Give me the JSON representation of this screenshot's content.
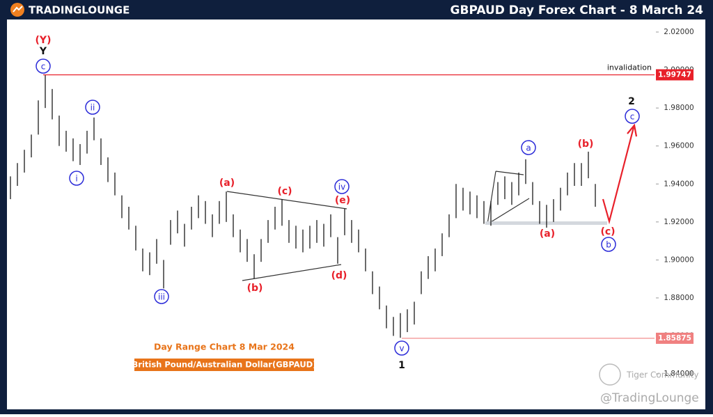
{
  "chart_data": {
    "type": "ohlc",
    "title": "GBPAUD Day Forex Chart - 8 March 24",
    "brand": "TRADINGLOUNGE",
    "caption": "Day Range Chart 8 Mar 2024",
    "subcaption": "British Pound/Australian Dollar(GBPAUD)",
    "watermark": [
      "Tiger Community",
      "@TradingLounge"
    ],
    "color": "#1a1a1a",
    "high": [
      1.944,
      1.951,
      1.958,
      1.966,
      1.984,
      1.9975,
      1.99,
      1.976,
      1.968,
      1.964,
      1.961,
      1.968,
      1.975,
      1.964,
      1.954,
      1.946,
      1.934,
      1.928,
      1.918,
      1.906,
      1.904,
      1.911,
      1.9,
      1.921,
      1.926,
      1.919,
      1.928,
      1.934,
      1.931,
      1.924,
      1.931,
      1.936,
      1.924,
      1.916,
      1.911,
      1.903,
      1.911,
      1.921,
      1.928,
      1.932,
      1.921,
      1.918,
      1.916,
      1.918,
      1.921,
      1.919,
      1.924,
      1.912,
      1.927,
      1.921,
      1.916,
      1.906,
      1.894,
      1.886,
      1.876,
      1.87,
      1.872,
      1.874,
      1.878,
      1.894,
      1.902,
      1.906,
      1.914,
      1.924,
      1.94,
      1.938,
      1.936,
      1.934,
      1.931,
      1.931,
      1.941,
      1.944,
      1.941,
      1.946,
      1.953,
      1.941,
      1.931,
      1.929,
      1.932,
      1.938,
      1.946,
      1.951,
      1.951,
      1.957,
      1.94
    ],
    "low": [
      1.932,
      1.939,
      1.946,
      1.954,
      1.966,
      1.98,
      1.974,
      1.96,
      1.957,
      1.952,
      1.95,
      1.956,
      1.963,
      1.95,
      1.941,
      1.934,
      1.922,
      1.916,
      1.905,
      1.894,
      1.892,
      1.898,
      1.885,
      1.908,
      1.914,
      1.907,
      1.916,
      1.922,
      1.919,
      1.912,
      1.919,
      1.92,
      1.912,
      1.904,
      1.899,
      1.89,
      1.899,
      1.909,
      1.916,
      1.918,
      1.909,
      1.906,
      1.904,
      1.906,
      1.909,
      1.907,
      1.912,
      1.898,
      1.913,
      1.909,
      1.904,
      1.894,
      1.882,
      1.874,
      1.864,
      1.86,
      1.859,
      1.862,
      1.866,
      1.882,
      1.89,
      1.894,
      1.902,
      1.912,
      1.922,
      1.926,
      1.924,
      1.922,
      1.919,
      1.918,
      1.929,
      1.932,
      1.929,
      1.934,
      1.94,
      1.929,
      1.919,
      1.917,
      1.92,
      1.926,
      1.934,
      1.939,
      1.939,
      1.943,
      1.928
    ],
    "ylim": [
      1.8206,
      2.0266
    ],
    "yticks": [
      {
        "value": 1.84,
        "label": "1.84000"
      },
      {
        "value": 1.86,
        "label": "1.86000"
      },
      {
        "value": 1.88,
        "label": "1.88000"
      },
      {
        "value": 1.9,
        "label": "1.90000"
      },
      {
        "value": 1.92,
        "label": "1.92000"
      },
      {
        "value": 1.94,
        "label": "1.94000"
      },
      {
        "value": 1.96,
        "label": "1.96000"
      },
      {
        "value": 1.98,
        "label": "1.98000"
      },
      {
        "value": 2.0,
        "label": "2.00000"
      },
      {
        "value": 2.02,
        "label": "2.02000"
      }
    ],
    "levels": [
      {
        "value": 1.99747,
        "label": "invalidation",
        "color": "#e8202a"
      },
      {
        "value": 1.85875,
        "color": "#f08080"
      }
    ],
    "annotations": [
      {
        "text": "(Y)",
        "color": "#e8202a"
      },
      {
        "text": "Y",
        "color": "#111"
      },
      {
        "text": "c",
        "color": "#2b2bd8",
        "circled": true
      },
      {
        "text": "ii",
        "color": "#2b2bd8",
        "circled": true
      },
      {
        "text": "i",
        "color": "#2b2bd8",
        "circled": true
      },
      {
        "text": "iii",
        "color": "#2b2bd8",
        "circled": true
      },
      {
        "text": "(a)",
        "color": "#e8202a"
      },
      {
        "text": "(c)",
        "color": "#e8202a"
      },
      {
        "text": "(b)",
        "color": "#e8202a"
      },
      {
        "text": "(e)",
        "color": "#e8202a"
      },
      {
        "text": "iv",
        "color": "#2b2bd8",
        "circled": true
      },
      {
        "text": "(d)",
        "color": "#e8202a"
      },
      {
        "text": "v",
        "color": "#2b2bd8",
        "circled": true
      },
      {
        "text": "1",
        "color": "#111"
      },
      {
        "text": "a",
        "color": "#2b2bd8",
        "circled": true
      },
      {
        "text": "(b)",
        "color": "#e8202a"
      },
      {
        "text": "(a)",
        "color": "#e8202a"
      },
      {
        "text": "(c)",
        "color": "#e8202a"
      },
      {
        "text": "b",
        "color": "#2b2bd8",
        "circled": true
      },
      {
        "text": "2",
        "color": "#111"
      },
      {
        "text": "c",
        "color": "#2b2bd8",
        "circled": true
      }
    ]
  }
}
